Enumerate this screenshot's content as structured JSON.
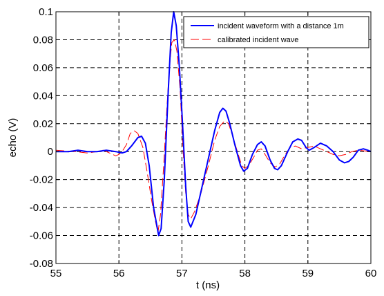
{
  "chart_data": {
    "type": "line",
    "xlabel": "t (ns)",
    "ylabel": "echo (V)",
    "xlim": [
      55,
      60
    ],
    "ylim": [
      -0.08,
      0.1
    ],
    "grid": "dashed",
    "legend_position": "top-right",
    "x_ticks": [
      55,
      56,
      57,
      58,
      59,
      60
    ],
    "x_tick_labels": [
      "55",
      "56",
      "57",
      "58",
      "59",
      "60"
    ],
    "y_ticks": [
      -0.08,
      -0.06,
      -0.04,
      -0.02,
      0,
      0.02,
      0.04,
      0.06,
      0.08,
      0.1
    ],
    "y_tick_labels": [
      "-0.08",
      "-0.06",
      "-0.04",
      "-0.02",
      "0",
      "0.02",
      "0.04",
      "0.06",
      "0.08",
      "0.1"
    ],
    "series": [
      {
        "name": "incident waveform with a distance 1m",
        "color": "#0000ff",
        "style": "solid",
        "points": [
          [
            55.0,
            0.0
          ],
          [
            55.2,
            0.0
          ],
          [
            55.35,
            0.001
          ],
          [
            55.5,
            0.0
          ],
          [
            55.65,
            0.0
          ],
          [
            55.8,
            0.001
          ],
          [
            55.95,
            0.0
          ],
          [
            56.05,
            -0.001
          ],
          [
            56.12,
            0.0
          ],
          [
            56.2,
            0.004
          ],
          [
            56.3,
            0.01
          ],
          [
            56.36,
            0.011
          ],
          [
            56.42,
            0.006
          ],
          [
            56.48,
            -0.01
          ],
          [
            56.55,
            -0.04
          ],
          [
            56.63,
            -0.06
          ],
          [
            56.67,
            -0.055
          ],
          [
            56.72,
            -0.02
          ],
          [
            56.78,
            0.04
          ],
          [
            56.83,
            0.085
          ],
          [
            56.87,
            0.1
          ],
          [
            56.91,
            0.09
          ],
          [
            56.96,
            0.06
          ],
          [
            57.01,
            0.02
          ],
          [
            57.06,
            -0.025
          ],
          [
            57.1,
            -0.05
          ],
          [
            57.14,
            -0.054
          ],
          [
            57.22,
            -0.045
          ],
          [
            57.32,
            -0.025
          ],
          [
            57.42,
            -0.005
          ],
          [
            57.52,
            0.015
          ],
          [
            57.6,
            0.028
          ],
          [
            57.65,
            0.031
          ],
          [
            57.7,
            0.029
          ],
          [
            57.76,
            0.02
          ],
          [
            57.84,
            0.005
          ],
          [
            57.93,
            -0.01
          ],
          [
            57.98,
            -0.014
          ],
          [
            58.04,
            -0.012
          ],
          [
            58.12,
            -0.002
          ],
          [
            58.2,
            0.005
          ],
          [
            58.26,
            0.007
          ],
          [
            58.32,
            0.004
          ],
          [
            58.4,
            -0.006
          ],
          [
            58.47,
            -0.012
          ],
          [
            58.52,
            -0.013
          ],
          [
            58.58,
            -0.01
          ],
          [
            58.68,
            0.0
          ],
          [
            58.76,
            0.007
          ],
          [
            58.84,
            0.009
          ],
          [
            58.9,
            0.008
          ],
          [
            58.97,
            0.003
          ],
          [
            59.02,
            0.001
          ],
          [
            59.1,
            0.003
          ],
          [
            59.2,
            0.006
          ],
          [
            59.3,
            0.004
          ],
          [
            59.4,
            0.0
          ],
          [
            59.5,
            -0.006
          ],
          [
            59.58,
            -0.008
          ],
          [
            59.65,
            -0.007
          ],
          [
            59.72,
            -0.004
          ],
          [
            59.8,
            0.001
          ],
          [
            59.88,
            0.002
          ],
          [
            59.95,
            0.001
          ],
          [
            60.0,
            0.0
          ]
        ]
      },
      {
        "name": "calibrated incident wave",
        "color": "#ff0000",
        "style": "dashed",
        "points": [
          [
            55.0,
            0.001
          ],
          [
            55.3,
            0.0
          ],
          [
            55.5,
            -0.001
          ],
          [
            55.65,
            0.0
          ],
          [
            55.75,
            0.001
          ],
          [
            55.85,
            -0.001
          ],
          [
            55.95,
            -0.003
          ],
          [
            56.0,
            -0.002
          ],
          [
            56.05,
            0.0
          ],
          [
            56.12,
            0.005
          ],
          [
            56.18,
            0.013
          ],
          [
            56.24,
            0.015
          ],
          [
            56.3,
            0.013
          ],
          [
            56.38,
            0.003
          ],
          [
            56.45,
            -0.015
          ],
          [
            56.52,
            -0.035
          ],
          [
            56.58,
            -0.05
          ],
          [
            56.62,
            -0.058
          ],
          [
            56.66,
            -0.045
          ],
          [
            56.71,
            -0.01
          ],
          [
            56.76,
            0.03
          ],
          [
            56.8,
            0.06
          ],
          [
            56.84,
            0.078
          ],
          [
            56.88,
            0.08
          ],
          [
            56.92,
            0.072
          ],
          [
            56.97,
            0.045
          ],
          [
            57.02,
            0.0
          ],
          [
            57.06,
            -0.03
          ],
          [
            57.1,
            -0.045
          ],
          [
            57.14,
            -0.048
          ],
          [
            57.2,
            -0.043
          ],
          [
            57.3,
            -0.03
          ],
          [
            57.42,
            -0.01
          ],
          [
            57.52,
            0.008
          ],
          [
            57.6,
            0.018
          ],
          [
            57.68,
            0.022
          ],
          [
            57.74,
            0.02
          ],
          [
            57.8,
            0.012
          ],
          [
            57.88,
            0.0
          ],
          [
            57.95,
            -0.01
          ],
          [
            58.0,
            -0.012
          ],
          [
            58.06,
            -0.01
          ],
          [
            58.14,
            -0.004
          ],
          [
            58.2,
            0.001
          ],
          [
            58.26,
            0.002
          ],
          [
            58.32,
            -0.002
          ],
          [
            58.4,
            -0.008
          ],
          [
            58.48,
            -0.011
          ],
          [
            58.55,
            -0.009
          ],
          [
            58.64,
            -0.002
          ],
          [
            58.72,
            0.003
          ],
          [
            58.8,
            0.004
          ],
          [
            58.9,
            0.002
          ],
          [
            59.0,
            0.003
          ],
          [
            59.1,
            0.004
          ],
          [
            59.2,
            0.002
          ],
          [
            59.3,
            0.0
          ],
          [
            59.4,
            -0.002
          ],
          [
            59.5,
            -0.003
          ],
          [
            59.6,
            -0.002
          ],
          [
            59.7,
            0.0
          ],
          [
            59.8,
            0.001
          ],
          [
            60.0,
            0.0
          ]
        ]
      }
    ]
  }
}
